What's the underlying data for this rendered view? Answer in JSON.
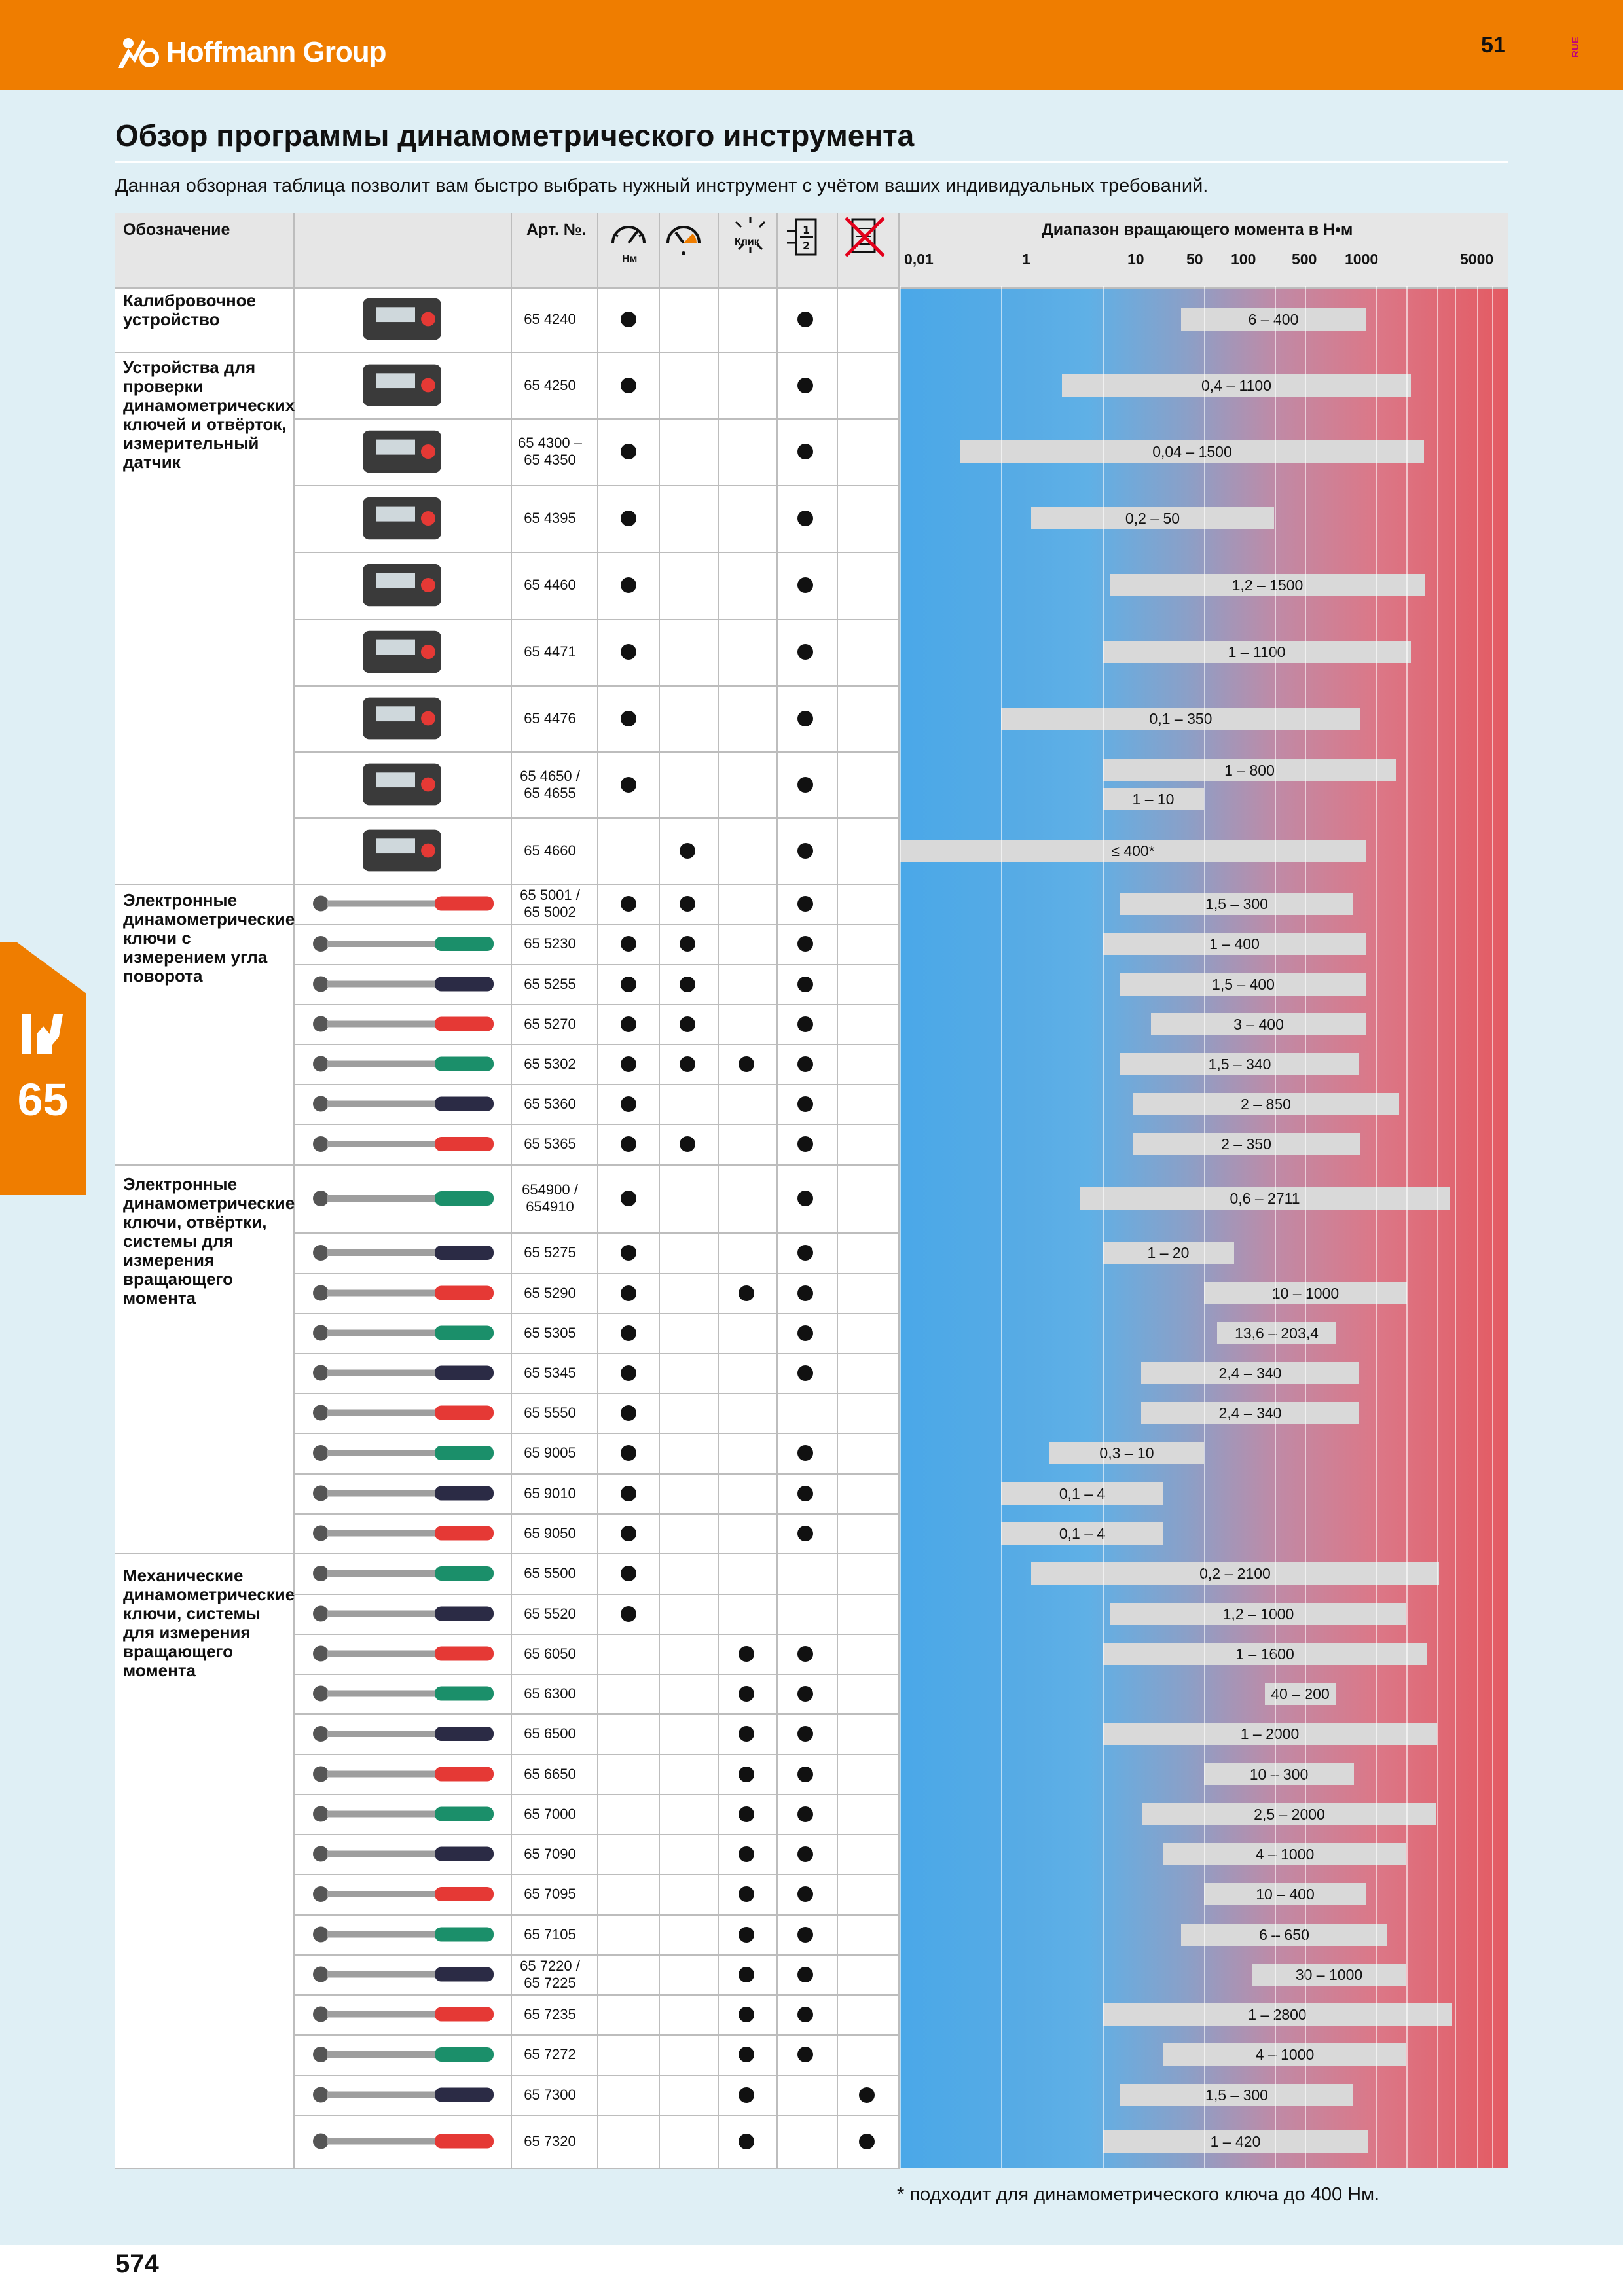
{
  "brand": "Hoffmann Group",
  "page_top": "51",
  "lang_code": "RUE",
  "title": "Обзор программы динамометрического инструмента",
  "subtitle": "Данная обзорная таблица позволит вам быстро выбрать нужный инструмент с учётом ваших индивидуальных требований.",
  "chapter": "65",
  "headers": {
    "designation": "Обозначение",
    "article": "Арт. №.",
    "icon_nm": "Нм",
    "icon_click": "Клик",
    "icon_half": "1 / 2",
    "range": "Диапазон вращающего момента в Н•м"
  },
  "ticks": [
    "0,01",
    "1",
    "10",
    "50",
    "100",
    "500",
    "1000",
    "5000"
  ],
  "groups": [
    {
      "label": "Калибровочное устройство"
    },
    {
      "label": "Устройства для проверки динамометрических ключей и отвёрток, измерительный датчик"
    },
    {
      "label": "Электронные динамометрические ключи с измерением угла поворота"
    },
    {
      "label": "Электронные динамометрические ключи, отвёртки, системы для измерения вращающего момента"
    },
    {
      "label": "Механические динамометрические ключи, системы для измерения вращающего момента"
    }
  ],
  "rows": [
    {
      "art": "65 4240",
      "c1": true,
      "c2": false,
      "c3": false,
      "c4": true,
      "c5": false,
      "range": "6 – 400",
      "min": 6,
      "max": 400
    },
    {
      "art": "65 4250",
      "c1": true,
      "c2": false,
      "c3": false,
      "c4": true,
      "c5": false,
      "range": "0,4 – 1100",
      "min": 0.4,
      "max": 1100
    },
    {
      "art": "65 4300 – 65 4350",
      "c1": true,
      "c2": false,
      "c3": false,
      "c4": true,
      "c5": false,
      "range": "0,04 – 1500",
      "min": 0.04,
      "max": 1500
    },
    {
      "art": "65 4395",
      "c1": true,
      "c2": false,
      "c3": false,
      "c4": true,
      "c5": false,
      "range": "0,2 – 50",
      "min": 0.2,
      "max": 50
    },
    {
      "art": "65 4460",
      "c1": true,
      "c2": false,
      "c3": false,
      "c4": true,
      "c5": false,
      "range": "1,2 – 1500",
      "min": 1.2,
      "max": 1500
    },
    {
      "art": "65 4471",
      "c1": true,
      "c2": false,
      "c3": false,
      "c4": true,
      "c5": false,
      "range": "1 – 1100",
      "min": 1,
      "max": 1100
    },
    {
      "art": "65 4476",
      "c1": true,
      "c2": false,
      "c3": false,
      "c4": true,
      "c5": false,
      "range": "0,1 – 350",
      "min": 0.1,
      "max": 350
    },
    {
      "art": "65 4650 / 65 4655",
      "c1": true,
      "c2": false,
      "c3": false,
      "c4": true,
      "c5": false,
      "range": "1 – 800",
      "min": 1,
      "max": 800,
      "range2": "1 – 10",
      "min2": 1,
      "max2": 10
    },
    {
      "art": "65 4660",
      "c1": false,
      "c2": true,
      "c3": false,
      "c4": true,
      "c5": false,
      "range": "≤ 400*",
      "min": 0.01,
      "max": 400
    },
    {
      "art": "65 5001 / 65 5002",
      "c1": true,
      "c2": true,
      "c3": false,
      "c4": true,
      "c5": false,
      "range": "1,5 – 300",
      "min": 1.5,
      "max": 300
    },
    {
      "art": "65 5230",
      "c1": true,
      "c2": true,
      "c3": false,
      "c4": true,
      "c5": false,
      "range": "1 – 400",
      "min": 1,
      "max": 400
    },
    {
      "art": "65 5255",
      "c1": true,
      "c2": true,
      "c3": false,
      "c4": true,
      "c5": false,
      "range": "1,5 – 400",
      "min": 1.5,
      "max": 400
    },
    {
      "art": "65 5270",
      "c1": true,
      "c2": true,
      "c3": false,
      "c4": true,
      "c5": false,
      "range": "3 – 400",
      "min": 3,
      "max": 400
    },
    {
      "art": "65 5302",
      "c1": true,
      "c2": true,
      "c3": true,
      "c4": true,
      "c5": false,
      "range": "1,5 – 340",
      "min": 1.5,
      "max": 340
    },
    {
      "art": "65 5360",
      "c1": true,
      "c2": false,
      "c3": false,
      "c4": true,
      "c5": false,
      "range": "2 – 850",
      "min": 2,
      "max": 850
    },
    {
      "art": "65 5365",
      "c1": true,
      "c2": true,
      "c3": false,
      "c4": true,
      "c5": false,
      "range": "2 – 350",
      "min": 2,
      "max": 350
    },
    {
      "art": "654900 / 654910",
      "c1": true,
      "c2": false,
      "c3": false,
      "c4": true,
      "c5": false,
      "range": "0,6 – 2711",
      "min": 0.6,
      "max": 2711
    },
    {
      "art": "65 5275",
      "c1": true,
      "c2": false,
      "c3": false,
      "c4": true,
      "c5": false,
      "range": "1 – 20",
      "min": 1,
      "max": 20
    },
    {
      "art": "65 5290",
      "c1": true,
      "c2": false,
      "c3": true,
      "c4": true,
      "c5": false,
      "range": "10 – 1000",
      "min": 10,
      "max": 1000
    },
    {
      "art": "65 5305",
      "c1": true,
      "c2": false,
      "c3": false,
      "c4": true,
      "c5": false,
      "range": "13,6 – 203,4",
      "min": 13.6,
      "max": 203.4
    },
    {
      "art": "65 5345",
      "c1": true,
      "c2": false,
      "c3": false,
      "c4": true,
      "c5": false,
      "range": "2,4 – 340",
      "min": 2.4,
      "max": 340
    },
    {
      "art": "65 5550",
      "c1": true,
      "c2": false,
      "c3": false,
      "c4": false,
      "c5": false,
      "range": "2,4 – 340",
      "min": 2.4,
      "max": 340
    },
    {
      "art": "65 9005",
      "c1": true,
      "c2": false,
      "c3": false,
      "c4": true,
      "c5": false,
      "range": "0,3 – 10",
      "min": 0.3,
      "max": 10
    },
    {
      "art": "65 9010",
      "c1": true,
      "c2": false,
      "c3": false,
      "c4": true,
      "c5": false,
      "range": "0,1 – 4",
      "min": 0.1,
      "max": 4
    },
    {
      "art": "65 9050",
      "c1": true,
      "c2": false,
      "c3": false,
      "c4": true,
      "c5": false,
      "range": "0,1 – 4",
      "min": 0.1,
      "max": 4
    },
    {
      "art": "65 5500",
      "c1": true,
      "c2": false,
      "c3": false,
      "c4": false,
      "c5": false,
      "range": "0,2 – 2100",
      "min": 0.2,
      "max": 2100
    },
    {
      "art": "65 5520",
      "c1": true,
      "c2": false,
      "c3": false,
      "c4": false,
      "c5": false,
      "range": "1,2 – 1000",
      "min": 1.2,
      "max": 1000
    },
    {
      "art": "65 6050",
      "c1": false,
      "c2": false,
      "c3": true,
      "c4": true,
      "c5": false,
      "range": "1 – 1600",
      "min": 1,
      "max": 1600
    },
    {
      "art": "65 6300",
      "c1": false,
      "c2": false,
      "c3": true,
      "c4": true,
      "c5": false,
      "range": "40 – 200",
      "min": 40,
      "max": 200
    },
    {
      "art": "65 6500",
      "c1": false,
      "c2": false,
      "c3": true,
      "c4": true,
      "c5": false,
      "range": "1 – 2000",
      "min": 1,
      "max": 2000
    },
    {
      "art": "65 6650",
      "c1": false,
      "c2": false,
      "c3": true,
      "c4": true,
      "c5": false,
      "range": "10 – 300",
      "min": 10,
      "max": 300
    },
    {
      "art": "65 7000",
      "c1": false,
      "c2": false,
      "c3": true,
      "c4": true,
      "c5": false,
      "range": "2,5 – 2000",
      "min": 2.5,
      "max": 2000
    },
    {
      "art": "65 7090",
      "c1": false,
      "c2": false,
      "c3": true,
      "c4": true,
      "c5": false,
      "range": "4 – 1000",
      "min": 4,
      "max": 1000
    },
    {
      "art": "65 7095",
      "c1": false,
      "c2": false,
      "c3": true,
      "c4": true,
      "c5": false,
      "range": "10 – 400",
      "min": 10,
      "max": 400
    },
    {
      "art": "65 7105",
      "c1": false,
      "c2": false,
      "c3": true,
      "c4": true,
      "c5": false,
      "range": "6 – 650",
      "min": 6,
      "max": 650
    },
    {
      "art": "65 7220 / 65 7225",
      "c1": false,
      "c2": false,
      "c3": true,
      "c4": true,
      "c5": false,
      "range": "30 – 1000",
      "min": 30,
      "max": 1000
    },
    {
      "art": "65 7235",
      "c1": false,
      "c2": false,
      "c3": true,
      "c4": true,
      "c5": false,
      "range": "1 – 2800",
      "min": 1,
      "max": 2800
    },
    {
      "art": "65 7272",
      "c1": false,
      "c2": false,
      "c3": true,
      "c4": true,
      "c5": false,
      "range": "4 – 1000",
      "min": 4,
      "max": 1000
    },
    {
      "art": "65 7300",
      "c1": false,
      "c2": false,
      "c3": true,
      "c4": false,
      "c5": true,
      "range": "1,5 – 300",
      "min": 1.5,
      "max": 300
    },
    {
      "art": "65 7320",
      "c1": false,
      "c2": false,
      "c3": true,
      "c4": false,
      "c5": true,
      "range": "1 – 420",
      "min": 1,
      "max": 420
    }
  ],
  "footnote": "* подходит для динамометрического ключа до 400 Нм.",
  "page_bottom": "574",
  "colors": {
    "orange": "#ef7d00",
    "band": "#dfeff5",
    "blue": "#4aa8e8",
    "red": "#e45a62"
  }
}
